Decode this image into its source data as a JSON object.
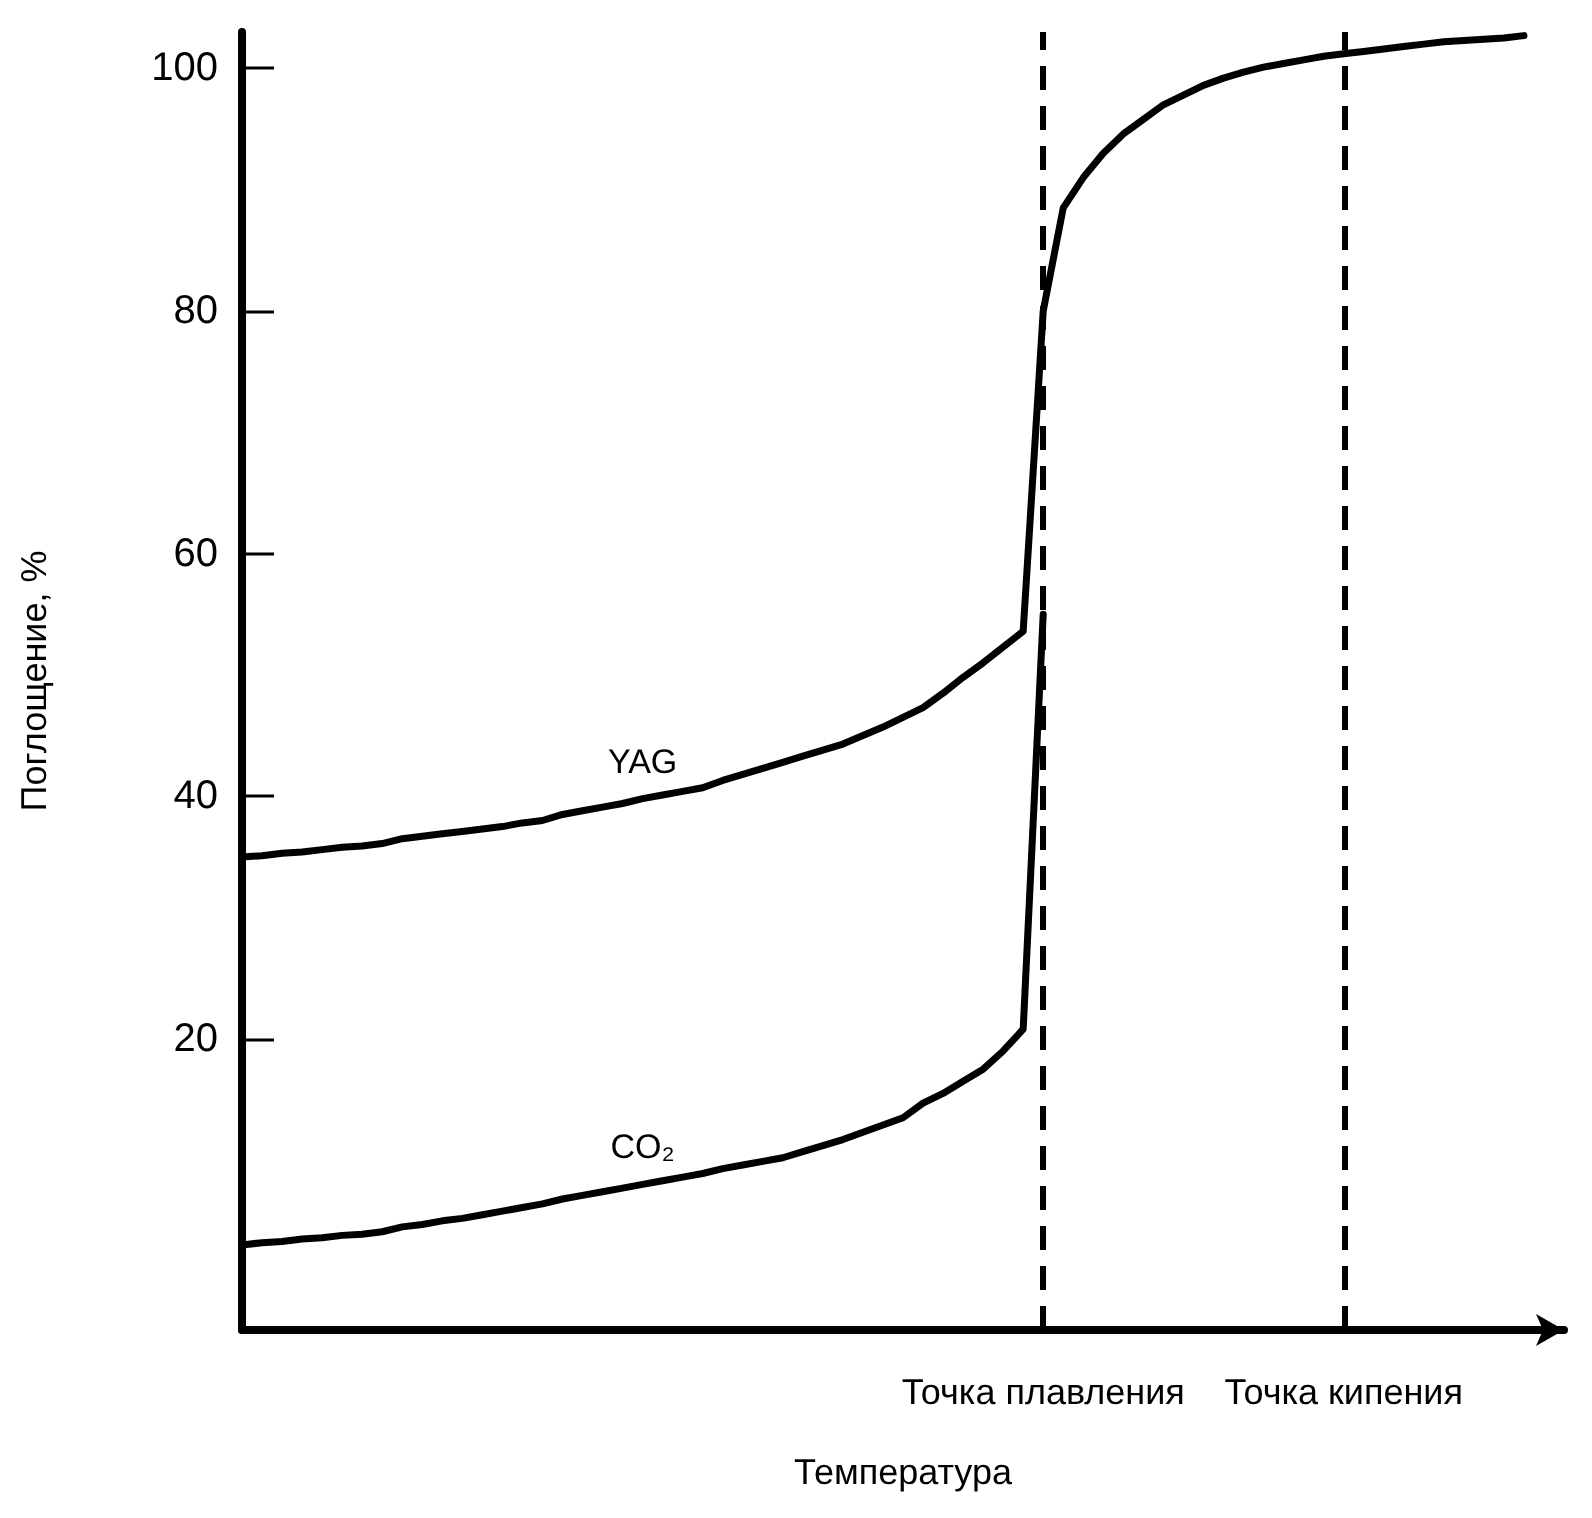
{
  "chart_data": {
    "type": "line",
    "xlabel": "Температура",
    "ylabel": "Поглощение, %",
    "categories": [
      null,
      null,
      null,
      null,
      null,
      null,
      null,
      null,
      null,
      null,
      null,
      null,
      null,
      null,
      null,
      null,
      null,
      null,
      null,
      null,
      null,
      null,
      null,
      null,
      null,
      null,
      null,
      null,
      null,
      null,
      null,
      null,
      null,
      null,
      null,
      null,
      null,
      null,
      null,
      null,
      "Точка плавления",
      null,
      null,
      null,
      null,
      null,
      null,
      null,
      null,
      null,
      null,
      null,
      null,
      null,
      null,
      "Точка кипения",
      null,
      null,
      null,
      null,
      null,
      null,
      null,
      null,
      null,
      null,
      null
    ],
    "ylim": [
      -4,
      103
    ],
    "yticks": [
      20,
      40,
      60,
      80,
      100
    ],
    "grid": false,
    "legend": false,
    "marker": "none",
    "line_style": "solid",
    "series": [
      {
        "name": "YAG",
        "color": "#000000",
        "values": [
          35,
          35.1,
          35.3,
          35.4,
          35.6,
          35.8,
          35.9,
          36.1,
          36.5,
          36.7,
          36.9,
          37.1,
          37.3,
          37.5,
          37.8,
          38,
          38.5,
          38.8,
          39.1,
          39.4,
          39.8,
          40.1,
          40.4,
          40.7,
          41.3,
          41.8,
          42.3,
          42.8,
          43.3,
          43.8,
          44.3,
          45,
          45.7,
          46.5,
          47.3,
          48.5,
          49.8,
          51,
          52.3,
          53.6,
          80,
          88.5,
          91,
          93,
          94.6,
          95.8,
          97,
          97.8,
          98.6,
          99.2,
          99.7,
          100.1,
          100.4,
          100.7,
          101,
          101.2,
          101.4,
          101.6,
          101.8,
          102,
          102.2,
          102.3,
          102.4,
          102.5,
          102.7,
          null,
          null
        ]
      },
      {
        "name": "CO₂",
        "color": "#000000",
        "values": [
          3,
          3.2,
          3.3,
          3.5,
          3.6,
          3.8,
          3.9,
          4.1,
          4.5,
          4.7,
          5,
          5.2,
          5.5,
          5.8,
          6.1,
          6.4,
          6.8,
          7.1,
          7.4,
          7.7,
          8,
          8.3,
          8.6,
          8.9,
          9.3,
          9.6,
          9.9,
          10.2,
          10.7,
          11.2,
          11.7,
          12.3,
          12.9,
          13.5,
          14.7,
          15.5,
          16.5,
          17.5,
          19,
          20.8,
          55,
          null,
          null,
          null,
          null,
          null,
          null,
          null,
          null,
          null,
          null,
          null,
          null,
          null,
          null,
          null,
          null,
          null,
          null,
          null,
          null,
          null,
          null,
          null,
          null,
          null,
          null
        ]
      }
    ],
    "ref_lines": [
      {
        "axis": "x",
        "value": "Точка плавления",
        "line_style": "dashed",
        "color": "#000000"
      },
      {
        "axis": "x",
        "value": "Точка кипения",
        "line_style": "dashed",
        "color": "#000000"
      }
    ]
  }
}
